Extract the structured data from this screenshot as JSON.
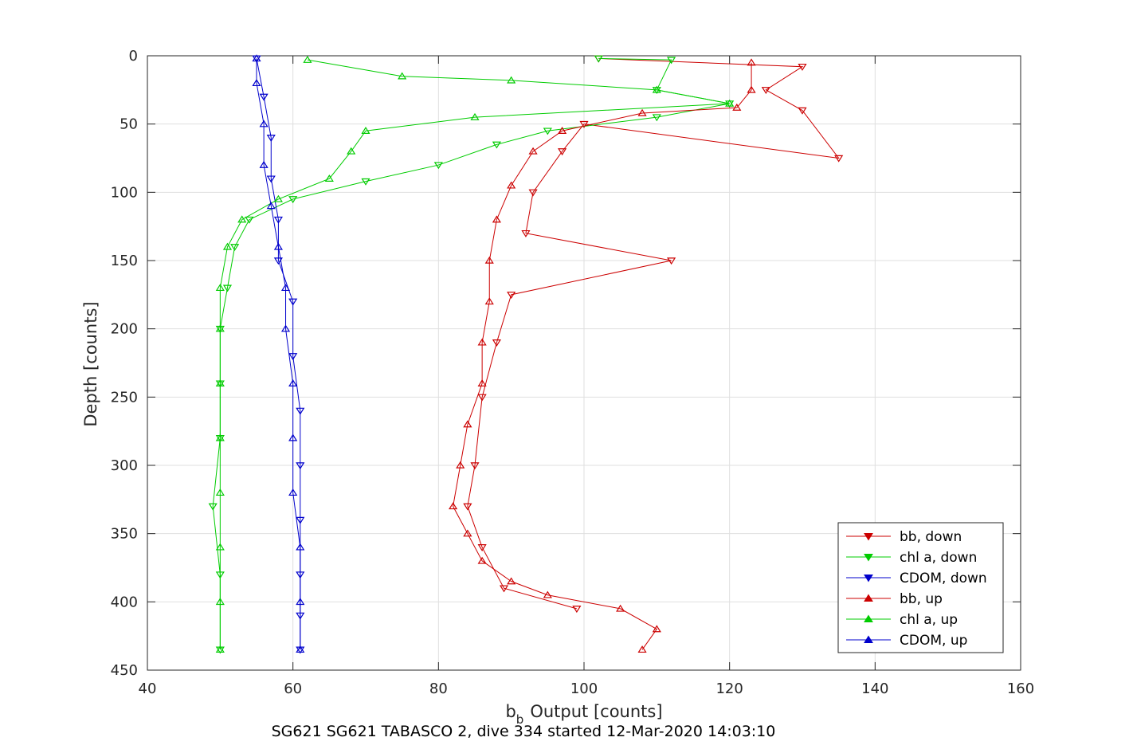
{
  "chart_data": {
    "type": "line",
    "xlabel": "Output [counts]",
    "xlabel_symbol": "b",
    "xlabel_subscript": "b",
    "ylabel": "Depth [counts]",
    "caption": "SG621 SG621 TABASCO 2, dive 334 started 12-Mar-2020 14:03:10",
    "xlim": [
      40,
      160
    ],
    "ylim": [
      0,
      450
    ],
    "y_reversed": true,
    "grid": true,
    "legend_position": "bottom-right",
    "x_ticks": [
      "40",
      "60",
      "80",
      "100",
      "120",
      "140",
      "160"
    ],
    "y_ticks": [
      "0",
      "50",
      "100",
      "150",
      "200",
      "250",
      "300",
      "350",
      "400",
      "450"
    ],
    "series": [
      {
        "name": "bb, down",
        "color": "#cc0000",
        "marker": "triangle-down",
        "points": [
          [
            102,
            2
          ],
          [
            130,
            8
          ],
          [
            125,
            25
          ],
          [
            130,
            40
          ],
          [
            135,
            75
          ],
          [
            100,
            50
          ],
          [
            97,
            70
          ],
          [
            93,
            100
          ],
          [
            92,
            130
          ],
          [
            112,
            150
          ],
          [
            90,
            175
          ],
          [
            88,
            210
          ],
          [
            86,
            250
          ],
          [
            85,
            300
          ],
          [
            84,
            330
          ],
          [
            86,
            360
          ],
          [
            89,
            390
          ],
          [
            99,
            405
          ]
        ]
      },
      {
        "name": "chl a, down",
        "color": "#00cc00",
        "marker": "triangle-down",
        "points": [
          [
            102,
            2
          ],
          [
            112,
            3
          ],
          [
            110,
            25
          ],
          [
            120,
            35
          ],
          [
            110,
            45
          ],
          [
            95,
            55
          ],
          [
            88,
            65
          ],
          [
            80,
            80
          ],
          [
            70,
            92
          ],
          [
            60,
            105
          ],
          [
            54,
            120
          ],
          [
            52,
            140
          ],
          [
            51,
            170
          ],
          [
            50,
            200
          ],
          [
            50,
            240
          ],
          [
            50,
            280
          ],
          [
            49,
            330
          ],
          [
            50,
            380
          ],
          [
            50,
            435
          ]
        ]
      },
      {
        "name": "CDOM, down",
        "color": "#0000cc",
        "marker": "triangle-down",
        "points": [
          [
            55,
            2
          ],
          [
            56,
            30
          ],
          [
            57,
            60
          ],
          [
            57,
            90
          ],
          [
            58,
            120
          ],
          [
            58,
            150
          ],
          [
            60,
            180
          ],
          [
            60,
            220
          ],
          [
            61,
            260
          ],
          [
            61,
            300
          ],
          [
            61,
            340
          ],
          [
            61,
            380
          ],
          [
            61,
            410
          ],
          [
            61,
            435
          ]
        ]
      },
      {
        "name": "bb, up",
        "color": "#cc0000",
        "marker": "triangle-up",
        "points": [
          [
            108,
            435
          ],
          [
            110,
            420
          ],
          [
            105,
            405
          ],
          [
            95,
            395
          ],
          [
            90,
            385
          ],
          [
            86,
            370
          ],
          [
            84,
            350
          ],
          [
            82,
            330
          ],
          [
            83,
            300
          ],
          [
            84,
            270
          ],
          [
            86,
            240
          ],
          [
            86,
            210
          ],
          [
            87,
            180
          ],
          [
            87,
            150
          ],
          [
            88,
            120
          ],
          [
            90,
            95
          ],
          [
            93,
            70
          ],
          [
            97,
            55
          ],
          [
            108,
            42
          ],
          [
            121,
            38
          ],
          [
            123,
            25
          ],
          [
            123,
            5
          ]
        ]
      },
      {
        "name": "chl a, up",
        "color": "#00cc00",
        "marker": "triangle-up",
        "points": [
          [
            50,
            435
          ],
          [
            50,
            400
          ],
          [
            50,
            360
          ],
          [
            50,
            320
          ],
          [
            50,
            280
          ],
          [
            50,
            240
          ],
          [
            50,
            200
          ],
          [
            50,
            170
          ],
          [
            51,
            140
          ],
          [
            53,
            120
          ],
          [
            58,
            105
          ],
          [
            65,
            90
          ],
          [
            68,
            70
          ],
          [
            70,
            55
          ],
          [
            85,
            45
          ],
          [
            120,
            35
          ],
          [
            110,
            25
          ],
          [
            90,
            18
          ],
          [
            75,
            15
          ],
          [
            62,
            3
          ]
        ]
      },
      {
        "name": "CDOM, up",
        "color": "#0000cc",
        "marker": "triangle-up",
        "points": [
          [
            61,
            435
          ],
          [
            61,
            400
          ],
          [
            61,
            360
          ],
          [
            60,
            320
          ],
          [
            60,
            280
          ],
          [
            60,
            240
          ],
          [
            59,
            200
          ],
          [
            59,
            170
          ],
          [
            58,
            140
          ],
          [
            57,
            110
          ],
          [
            56,
            80
          ],
          [
            56,
            50
          ],
          [
            55,
            20
          ],
          [
            55,
            2
          ]
        ]
      }
    ]
  }
}
